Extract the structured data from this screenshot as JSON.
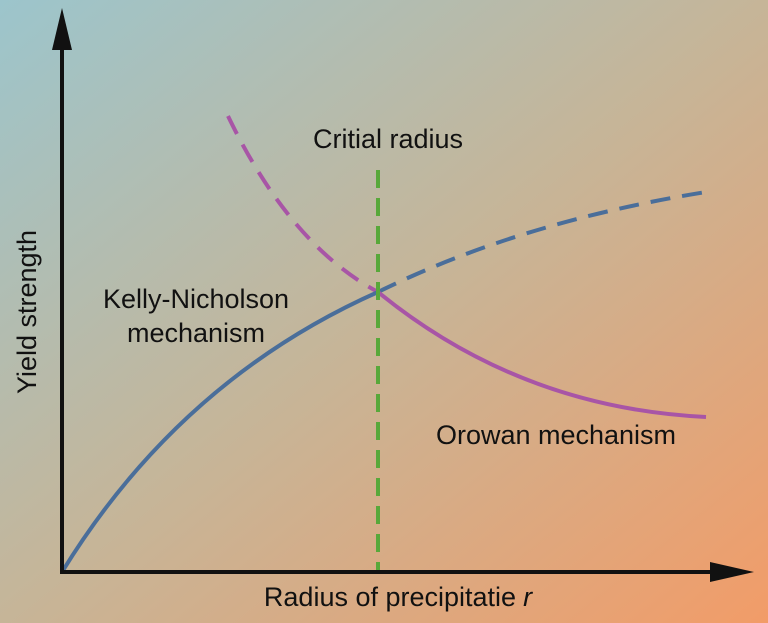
{
  "labels": {
    "critical_radius": "Critial radius",
    "kelly_nicholson": [
      "Kelly-Nicholson",
      "mechanism"
    ],
    "orowan": "Orowan mechanism",
    "y_axis": "Yield strength",
    "x_axis": {
      "text": "Radius of precipitatie",
      "variable": "r"
    }
  }
}
